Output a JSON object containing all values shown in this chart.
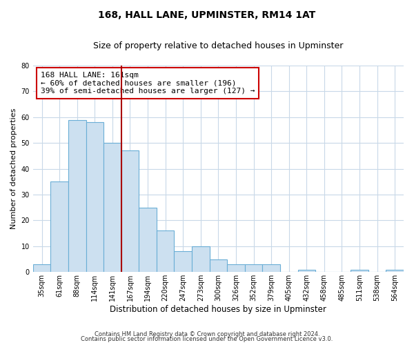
{
  "title": "168, HALL LANE, UPMINSTER, RM14 1AT",
  "subtitle": "Size of property relative to detached houses in Upminster",
  "xlabel": "Distribution of detached houses by size in Upminster",
  "ylabel": "Number of detached properties",
  "bar_labels": [
    "35sqm",
    "61sqm",
    "88sqm",
    "114sqm",
    "141sqm",
    "167sqm",
    "194sqm",
    "220sqm",
    "247sqm",
    "273sqm",
    "300sqm",
    "326sqm",
    "352sqm",
    "379sqm",
    "405sqm",
    "432sqm",
    "458sqm",
    "485sqm",
    "511sqm",
    "538sqm",
    "564sqm"
  ],
  "bar_values": [
    3,
    35,
    59,
    58,
    50,
    47,
    25,
    16,
    8,
    10,
    5,
    3,
    3,
    3,
    0,
    1,
    0,
    0,
    1,
    0,
    1
  ],
  "bar_color": "#cce0f0",
  "bar_edge_color": "#6aaed6",
  "vline_x_index": 5,
  "vline_color": "#aa0000",
  "annotation_text": "168 HALL LANE: 161sqm\n← 60% of detached houses are smaller (196)\n39% of semi-detached houses are larger (127) →",
  "annotation_box_edge": "#cc0000",
  "ylim": [
    0,
    80
  ],
  "yticks": [
    0,
    10,
    20,
    30,
    40,
    50,
    60,
    70,
    80
  ],
  "footer_line1": "Contains HM Land Registry data © Crown copyright and database right 2024.",
  "footer_line2": "Contains public sector information licensed under the Open Government Licence v3.0.",
  "background_color": "#ffffff",
  "plot_background": "#ffffff",
  "grid_color": "#c8d8e8",
  "title_fontsize": 10,
  "subtitle_fontsize": 9,
  "xlabel_fontsize": 8.5,
  "ylabel_fontsize": 8,
  "tick_fontsize": 7,
  "annotation_fontsize": 8,
  "footer_fontsize": 6
}
